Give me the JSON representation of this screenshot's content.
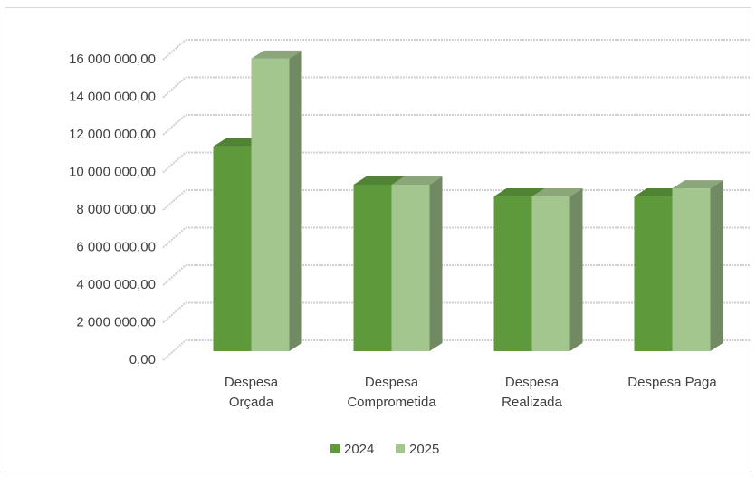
{
  "chart_data": {
    "type": "bar3d",
    "categories": [
      "Despesa\nOrçada",
      "Despesa\nComprometida",
      "Despesa\nRealizada",
      "Despesa Paga"
    ],
    "series": [
      {
        "name": "2024",
        "color": "#5e9a3c",
        "values": [
          10900000,
          8870000,
          8240000,
          8240000
        ]
      },
      {
        "name": "2025",
        "color": "#a3c58e",
        "values": [
          15570000,
          8870000,
          8240000,
          8670000
        ]
      }
    ],
    "ylim": [
      0,
      16000000
    ],
    "yticks": [
      {
        "value": 0,
        "label": "0,00"
      },
      {
        "value": 2000000,
        "label": "2 000 000,00"
      },
      {
        "value": 4000000,
        "label": "4 000 000,00"
      },
      {
        "value": 6000000,
        "label": "6 000 000,00"
      },
      {
        "value": 8000000,
        "label": "8 000 000,00"
      },
      {
        "value": 10000000,
        "label": "10 000 000,00"
      },
      {
        "value": 12000000,
        "label": "12 000 000,00"
      },
      {
        "value": 14000000,
        "label": "14 000 000,00"
      },
      {
        "value": 16000000,
        "label": "16 000 000,00"
      }
    ],
    "grid": true,
    "legend": "bottom"
  }
}
